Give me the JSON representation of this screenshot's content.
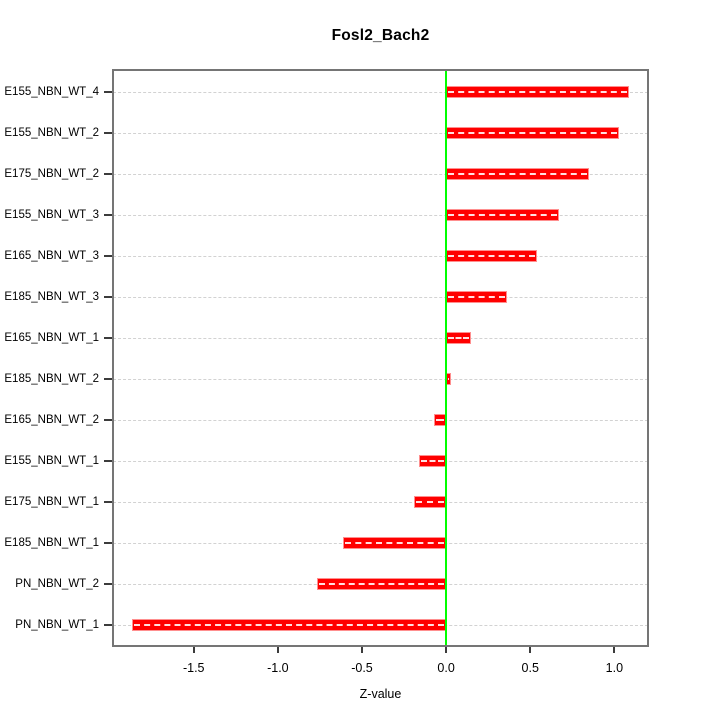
{
  "chart_data": {
    "type": "bar",
    "orientation": "horizontal",
    "title": "Fosl2_Bach2",
    "xlabel": "Z-value",
    "categories": [
      "E155_NBN_WT_4",
      "E155_NBN_WT_2",
      "E175_NBN_WT_2",
      "E155_NBN_WT_3",
      "E165_NBN_WT_3",
      "E185_NBN_WT_3",
      "E165_NBN_WT_1",
      "E185_NBN_WT_2",
      "E165_NBN_WT_2",
      "E155_NBN_WT_1",
      "E175_NBN_WT_1",
      "E185_NBN_WT_1",
      "PN_NBN_WT_2",
      "PN_NBN_WT_1"
    ],
    "values": [
      1.09,
      1.03,
      0.85,
      0.67,
      0.54,
      0.36,
      0.15,
      0.03,
      -0.07,
      -0.16,
      -0.19,
      -0.61,
      -0.77,
      -1.87
    ],
    "xlim": [
      -1.98,
      1.2
    ],
    "xticks": [
      -1.5,
      -1.0,
      -0.5,
      0.0,
      0.5,
      1.0
    ],
    "xtick_labels": [
      "-1.5",
      "-1.0",
      "-0.5",
      "0.0",
      "0.5",
      "1.0"
    ],
    "legend": "none",
    "grid": "dashed-horizontal-per-category",
    "colors": {
      "bar_fill": "#ff0000",
      "bar_border": "#ff8f8f",
      "bar_overlay_dash": "#ffffff",
      "zero_line": "#00ff00",
      "gridline": "#d2d2d2",
      "plot_border": "#757575",
      "tick": "#3c3c3c",
      "text": "#000000"
    }
  }
}
